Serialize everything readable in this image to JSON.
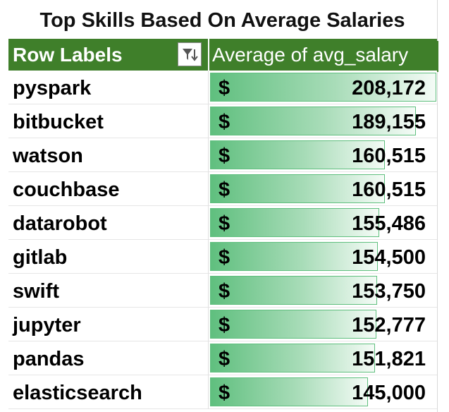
{
  "title": "Top Skills Based On Average Salaries",
  "header": {
    "row_labels": "Row Labels",
    "value_field": "Average of avg_salary",
    "filter_icon": "filter-sort-icon"
  },
  "currency_symbol": "$",
  "bar_max_value": 208172,
  "colors": {
    "header_bg": "#3f7f2a",
    "bar_fill": "#5fbf7e"
  },
  "rows": [
    {
      "label": "pyspark",
      "amount": "208,172",
      "value": 208172
    },
    {
      "label": "bitbucket",
      "amount": "189,155",
      "value": 189155
    },
    {
      "label": "watson",
      "amount": "160,515",
      "value": 160515
    },
    {
      "label": "couchbase",
      "amount": "160,515",
      "value": 160515
    },
    {
      "label": "datarobot",
      "amount": "155,486",
      "value": 155486
    },
    {
      "label": "gitlab",
      "amount": "154,500",
      "value": 154500
    },
    {
      "label": "swift",
      "amount": "153,750",
      "value": 153750
    },
    {
      "label": "jupyter",
      "amount": "152,777",
      "value": 152777
    },
    {
      "label": "pandas",
      "amount": "151,821",
      "value": 151821
    },
    {
      "label": "elasticsearch",
      "amount": "145,000",
      "value": 145000
    }
  ]
}
